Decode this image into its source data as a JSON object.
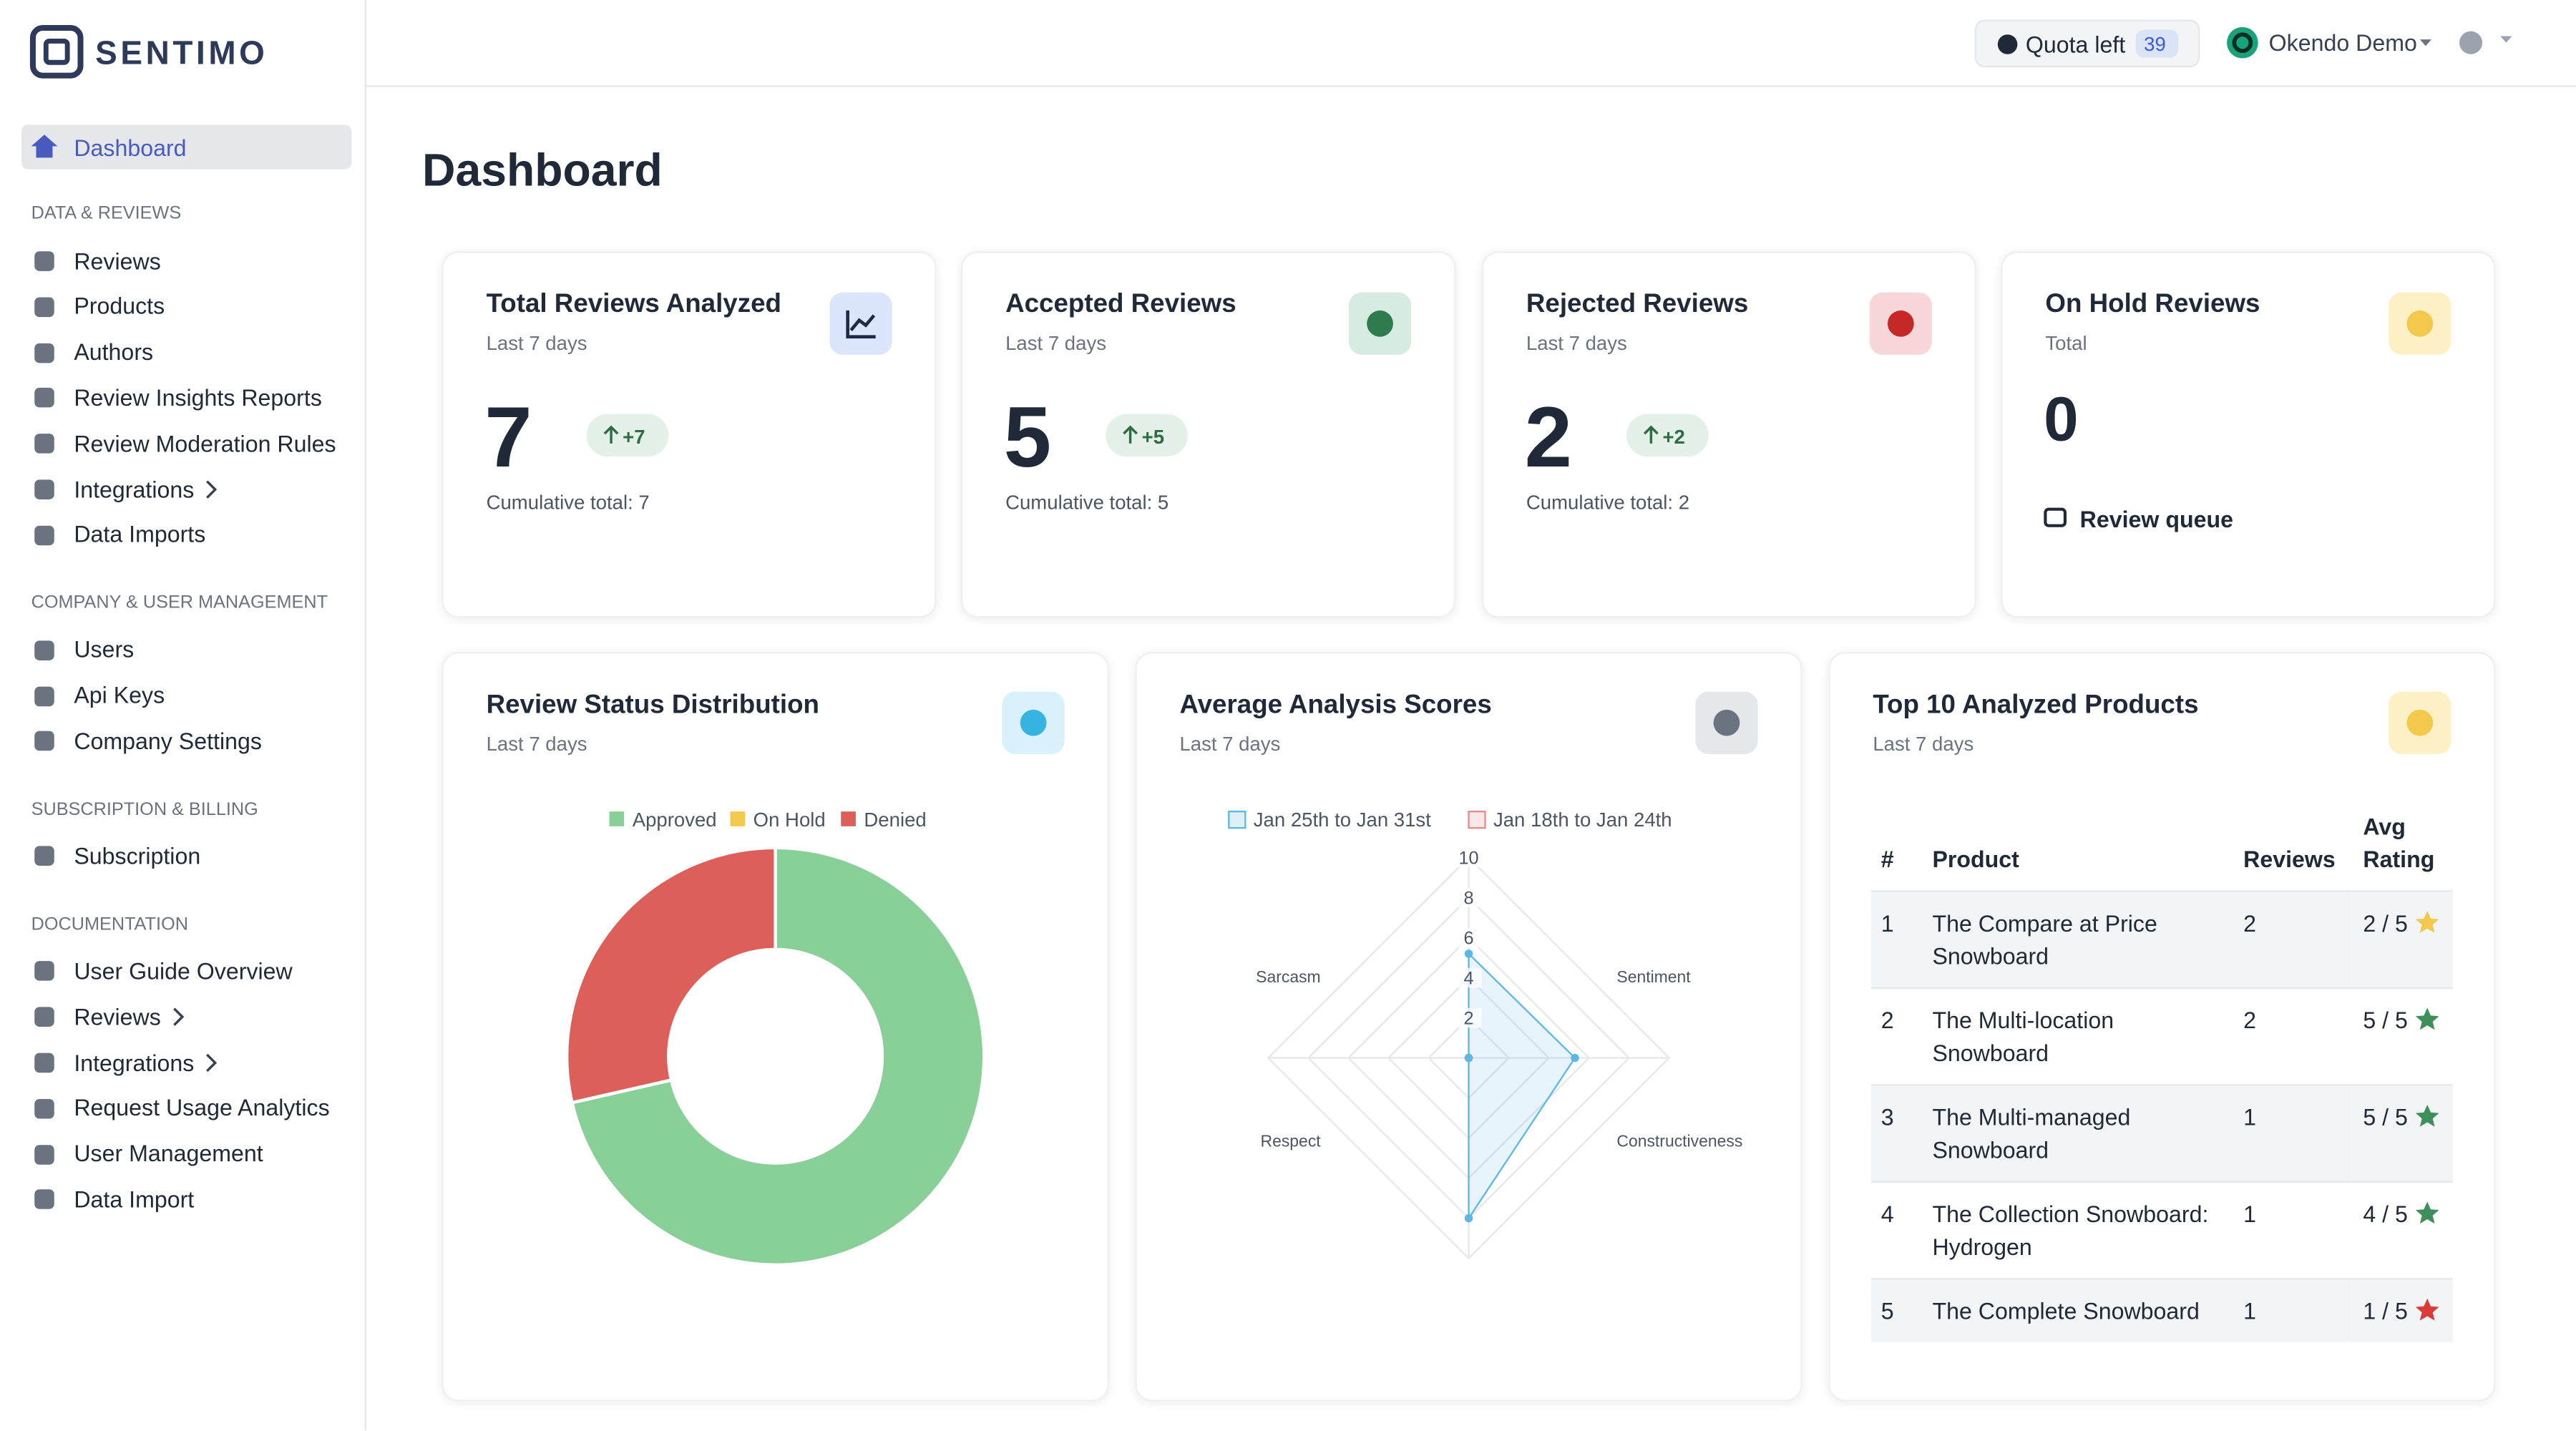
{
  "sidebar": {
    "brand": "SENTIMO",
    "active": "Dashboard",
    "sections": [
      {
        "title": "DATA & REVIEWS",
        "items": [
          {
            "label": "Reviews"
          },
          {
            "label": "Products"
          },
          {
            "label": "Authors"
          },
          {
            "label": "Review Insights Reports"
          },
          {
            "label": "Review Moderation Rules"
          },
          {
            "label": "Integrations",
            "expandable": true
          },
          {
            "label": "Data Imports"
          }
        ]
      },
      {
        "title": "COMPANY & USER MANAGEMENT",
        "items": [
          {
            "label": "Users"
          },
          {
            "label": "Api Keys"
          },
          {
            "label": "Company Settings"
          }
        ]
      },
      {
        "title": "SUBSCRIPTION & BILLING",
        "items": [
          {
            "label": "Subscription"
          }
        ]
      },
      {
        "title": "DOCUMENTATION",
        "items": [
          {
            "label": "User Guide Overview"
          },
          {
            "label": "Reviews",
            "expandable": true
          },
          {
            "label": "Integrations",
            "expandable": true
          },
          {
            "label": "Request Usage Analytics"
          },
          {
            "label": "User Management"
          },
          {
            "label": "Data Import"
          }
        ]
      }
    ]
  },
  "topbar": {
    "quota_label": "Quota left",
    "quota": 39,
    "account": "Okendo Demo"
  },
  "page_title": "Dashboard",
  "stat_cards": [
    {
      "title": "Total Reviews Analyzed",
      "subtitle": "Last 7 days",
      "value": 7,
      "change": "+7",
      "footer": "Cumulative total: 7"
    },
    {
      "title": "Accepted Reviews",
      "subtitle": "Last 7 days",
      "value": 5,
      "change": "+5",
      "footer": "Cumulative total: 5"
    },
    {
      "title": "Rejected Reviews",
      "subtitle": "Last 7 days",
      "value": 2,
      "change": "+2",
      "footer": "Cumulative total: 2"
    },
    {
      "title": "On Hold Reviews",
      "subtitle": "Total",
      "value": 0,
      "link": "Review queue"
    }
  ],
  "chart_data": [
    {
      "type": "pie",
      "title": "Review Status Distribution",
      "subtitle": "Last 7 days",
      "categories": [
        "Approved",
        "On Hold",
        "Denied"
      ],
      "values": [
        5,
        0,
        2
      ],
      "colors": [
        "#88cf98",
        "#f2c94c",
        "#dc5f5a"
      ],
      "legend": "top"
    },
    {
      "type": "radar",
      "title": "Average Analysis Scores",
      "subtitle": "Last 7 days",
      "categories": [
        "Sentiment",
        "Constructiveness",
        "Respect",
        "Sarcasm"
      ],
      "series": [
        {
          "name": "Jan 25th to Jan 31st",
          "color": "#5bb8e6",
          "values": [
            5.2,
            5.3,
            8,
            0
          ]
        },
        {
          "name": "Jan 18th to Jan 24th",
          "color": "#e88a8a",
          "values": [
            0,
            0,
            0,
            0
          ]
        }
      ],
      "rlim": [
        0,
        10
      ],
      "rticks": [
        2,
        4,
        6,
        8,
        10
      ],
      "legend": "top"
    }
  ],
  "top_products": {
    "title": "Top 10 Analyzed Products",
    "subtitle": "Last 7 days",
    "columns": [
      "#",
      "Product",
      "Reviews",
      "Avg Rating"
    ],
    "rows": [
      {
        "rank": 1,
        "product": "The Compare at Price Snowboard",
        "reviews": 2,
        "rating": "2 / 5"
      },
      {
        "rank": 2,
        "product": "The Multi-location Snowboard",
        "reviews": 2,
        "rating": "5 / 5"
      },
      {
        "rank": 3,
        "product": "The Multi-managed Snowboard",
        "reviews": 1,
        "rating": "5 / 5"
      },
      {
        "rank": 4,
        "product": "The Collection Snowboard: Hydrogen",
        "reviews": 1,
        "rating": "4 / 5"
      },
      {
        "rank": 5,
        "product": "The Complete Snowboard",
        "reviews": 1,
        "rating": "1 / 5"
      }
    ]
  }
}
